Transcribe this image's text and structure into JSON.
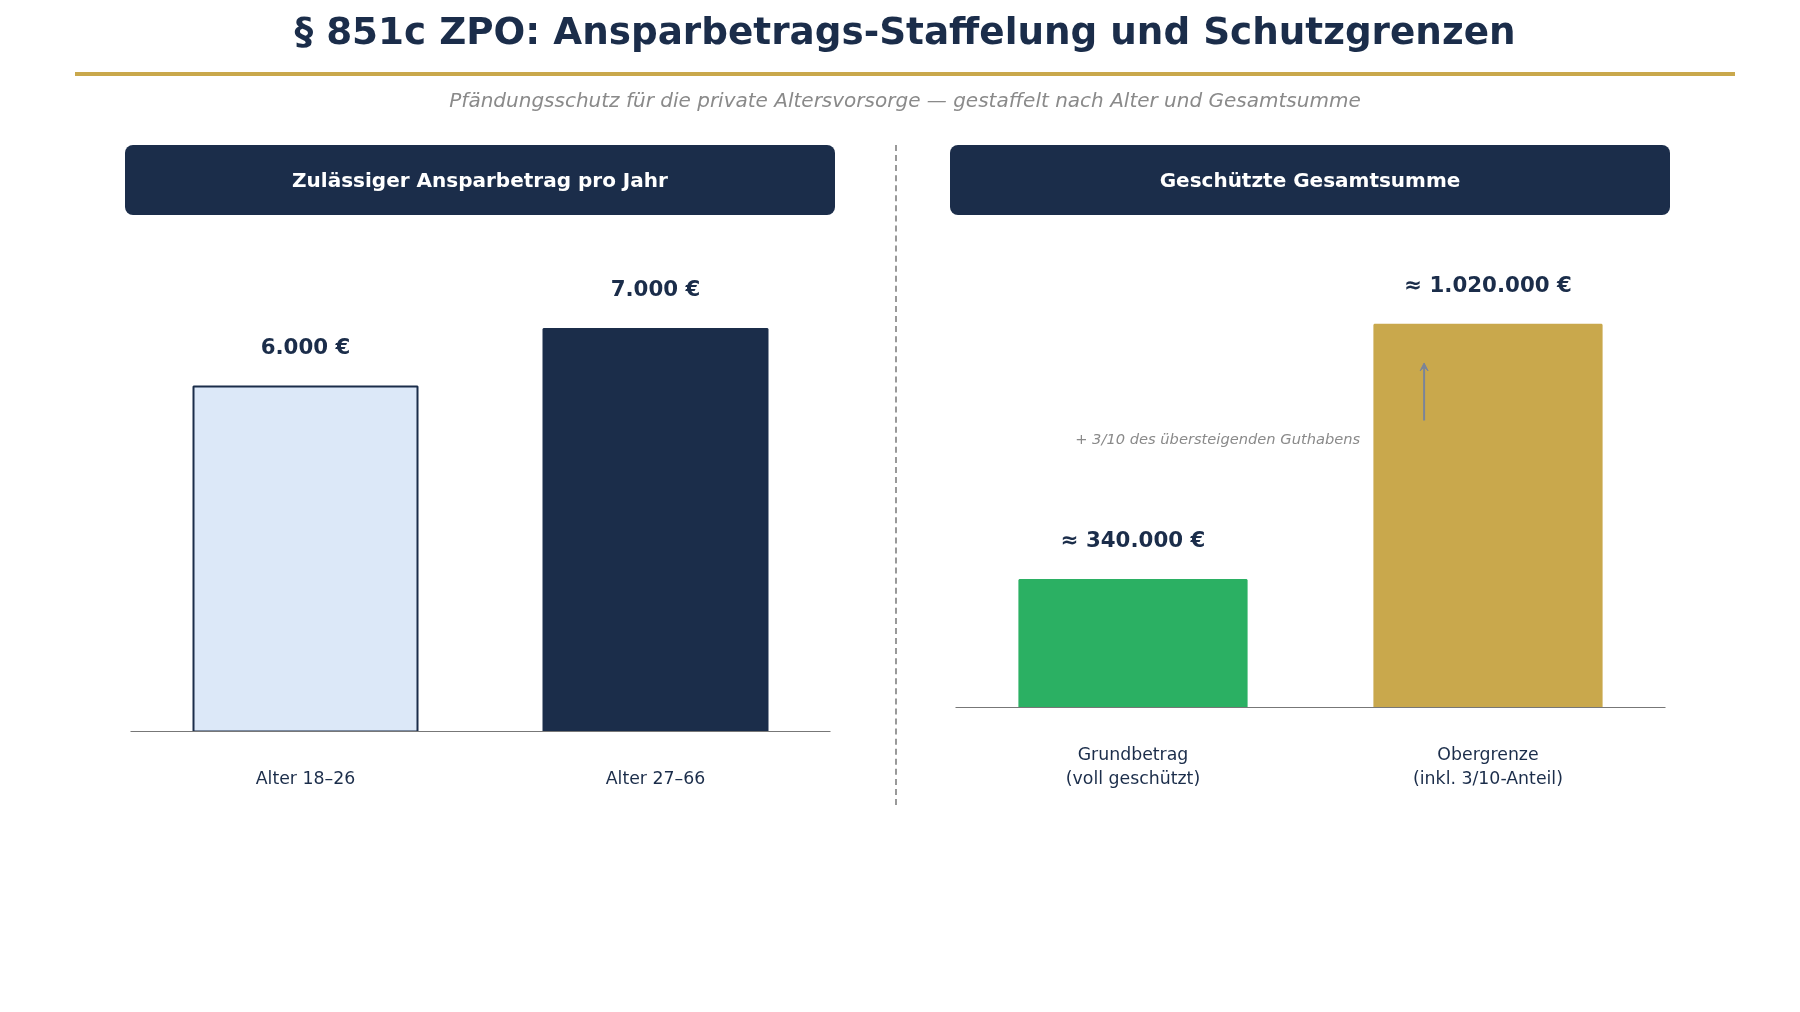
{
  "chart_data": [
    {
      "type": "bar",
      "title": "Zulässiger Ansparbetrag pro Jahr",
      "categories": [
        "Alter 18–26",
        "Alter 27–66"
      ],
      "values": [
        6000,
        7000
      ],
      "colors": [
        "#dce8f8",
        "#1b2d4a"
      ],
      "value_labels": [
        "6.000 €",
        "7.000 €"
      ],
      "grid": false,
      "annotations": [
        "§ 851c ZPO: Ansparbetrags-Staffelung und Schutzgrenzen",
        "Pfändungsschutz für die private Altersvorsorge — gestaffelt nach Alter und Gesamtsumme"
      ]
    },
    {
      "type": "bar",
      "title": "Geschützte Gesamtsumme",
      "categories": [
        "Grundbetrag\n(voll geschützt)",
        "Obergrenze\n(inkl. 3/10-Anteil)"
      ],
      "values": [
        340000,
        1020000
      ],
      "colors": [
        "#2bb063",
        "#c9a84c"
      ],
      "value_labels": [
        "≈ 340.000 €",
        "≈ 1.020.000 €"
      ],
      "grid": false,
      "annotations": [
        "+ 3/10 des übersteigenden Guthabens"
      ]
    }
  ]
}
